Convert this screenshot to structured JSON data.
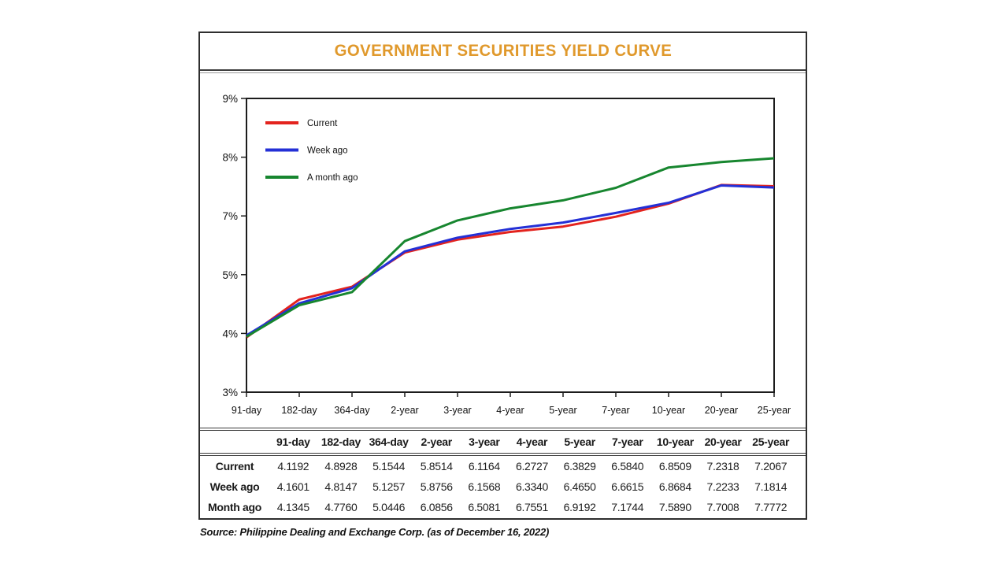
{
  "title": "GOVERNMENT SECURITIES YIELD CURVE",
  "source": "Source: Philippine Dealing and Exchange Corp. (as of December 16, 2022)",
  "colors": {
    "title_orange": "#E0992C",
    "current_red": "#E3231E",
    "week_ago_blue": "#2430D6",
    "month_ago_green": "#17862F"
  },
  "chart_data": {
    "type": "line",
    "title": "GOVERNMENT SECURITIES YIELD CURVE",
    "categories": [
      "91-day",
      "182-day",
      "364-day",
      "2-year",
      "3-year",
      "4-year",
      "5-year",
      "7-year",
      "10-year",
      "20-year",
      "25-year"
    ],
    "series": [
      {
        "name": "Current",
        "color_key": "current_red",
        "values": [
          4.1192,
          4.8928,
          5.1544,
          5.8514,
          6.1164,
          6.2727,
          6.3829,
          6.584,
          6.8509,
          7.2318,
          7.2067
        ]
      },
      {
        "name": "Week ago",
        "color_key": "week_ago_blue",
        "values": [
          4.1601,
          4.8147,
          5.1257,
          5.8756,
          6.1568,
          6.334,
          6.465,
          6.6615,
          6.8684,
          7.2233,
          7.1814
        ]
      },
      {
        "name": "A month ago",
        "color_key": "month_ago_green",
        "values": [
          4.1345,
          4.776,
          5.0446,
          6.0856,
          6.5081,
          6.7551,
          6.9192,
          7.1744,
          7.589,
          7.7008,
          7.7772
        ]
      }
    ],
    "ylim": [
      3,
      9
    ],
    "y_tick_labels": [
      "9%",
      "8%",
      "7%",
      "5%",
      "4%",
      "3%"
    ],
    "grid": false,
    "legend_position": "top-left"
  },
  "table": {
    "columns": [
      "91-day",
      "182-day",
      "364-day",
      "2-year",
      "3-year",
      "4-year",
      "5-year",
      "7-year",
      "10-year",
      "20-year",
      "25-year"
    ],
    "rows": [
      {
        "label": "Current",
        "values": [
          "4.1192",
          "4.8928",
          "5.1544",
          "5.8514",
          "6.1164",
          "6.2727",
          "6.3829",
          "6.5840",
          "6.8509",
          "7.2318",
          "7.2067"
        ]
      },
      {
        "label": "Week ago",
        "values": [
          "4.1601",
          "4.8147",
          "5.1257",
          "5.8756",
          "6.1568",
          "6.3340",
          "6.4650",
          "6.6615",
          "6.8684",
          "7.2233",
          "7.1814"
        ]
      },
      {
        "label": "Month ago",
        "values": [
          "4.1345",
          "4.7760",
          "5.0446",
          "6.0856",
          "6.5081",
          "6.7551",
          "6.9192",
          "7.1744",
          "7.5890",
          "7.7008",
          "7.7772"
        ]
      }
    ]
  }
}
